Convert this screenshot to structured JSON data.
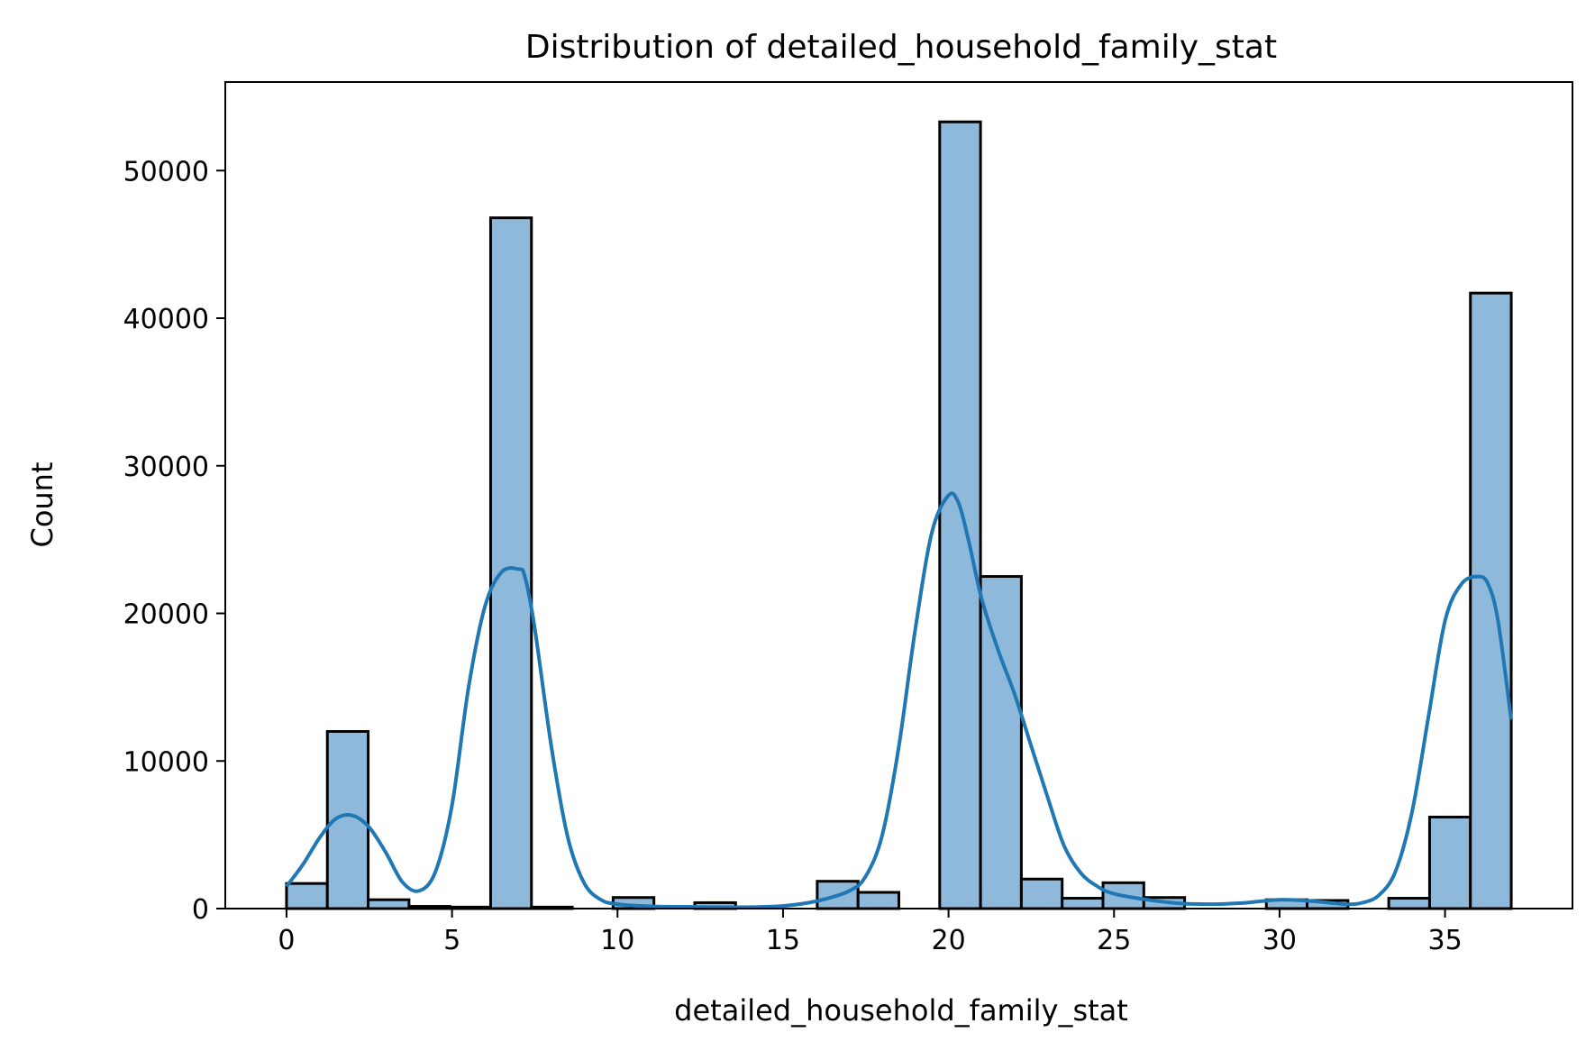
{
  "chart_data": {
    "type": "bar",
    "title": "Distribution of detailed_household_family_stat",
    "xlabel": "detailed_household_family_stat",
    "ylabel": "Count",
    "xlim": [
      -1.85,
      38.85
    ],
    "ylim": [
      0,
      56000
    ],
    "x_ticks": [
      0,
      5,
      10,
      15,
      20,
      25,
      30,
      35
    ],
    "y_ticks": [
      0,
      10000,
      20000,
      30000,
      40000,
      50000
    ],
    "bin_width": 1.2333,
    "bins": [
      {
        "left": 0.0,
        "value": 1700
      },
      {
        "left": 1.2333,
        "value": 12000
      },
      {
        "left": 2.4667,
        "value": 600
      },
      {
        "left": 3.7,
        "value": 150
      },
      {
        "left": 4.9333,
        "value": 100
      },
      {
        "left": 6.1667,
        "value": 46800
      },
      {
        "left": 7.4,
        "value": 100
      },
      {
        "left": 8.6333,
        "value": 0
      },
      {
        "left": 9.8667,
        "value": 750
      },
      {
        "left": 11.1,
        "value": 0
      },
      {
        "left": 12.3333,
        "value": 400
      },
      {
        "left": 13.5667,
        "value": 0
      },
      {
        "left": 14.8,
        "value": 0
      },
      {
        "left": 16.0333,
        "value": 1850
      },
      {
        "left": 17.2667,
        "value": 1100
      },
      {
        "left": 18.5,
        "value": 0
      },
      {
        "left": 19.7333,
        "value": 53300
      },
      {
        "left": 20.9667,
        "value": 22500
      },
      {
        "left": 22.2,
        "value": 2000
      },
      {
        "left": 23.4333,
        "value": 700
      },
      {
        "left": 24.6667,
        "value": 1750
      },
      {
        "left": 25.9,
        "value": 750
      },
      {
        "left": 27.1333,
        "value": 0
      },
      {
        "left": 28.3667,
        "value": 0
      },
      {
        "left": 29.6,
        "value": 600
      },
      {
        "left": 30.8333,
        "value": 550
      },
      {
        "left": 32.0667,
        "value": 0
      },
      {
        "left": 33.3,
        "value": 700
      },
      {
        "left": 34.5333,
        "value": 6200
      },
      {
        "left": 35.7667,
        "value": 41700
      }
    ],
    "kde": {
      "x": [
        0,
        0.5,
        1,
        1.5,
        2,
        2.5,
        3,
        3.5,
        4,
        4.5,
        5,
        5.5,
        6,
        6.5,
        7,
        7.2,
        7.5,
        8,
        8.5,
        9,
        9.5,
        10,
        11,
        12,
        13,
        14,
        15,
        16,
        17,
        17.5,
        18,
        18.5,
        19,
        19.5,
        20,
        20.3,
        20.6,
        21,
        21.5,
        22,
        22.5,
        23,
        23.5,
        24,
        24.5,
        25,
        26,
        27,
        28,
        29,
        30,
        31,
        32,
        32.5,
        33,
        33.5,
        34,
        34.5,
        35,
        35.5,
        36,
        36.3,
        36.6,
        37
      ],
      "y": [
        1500,
        3000,
        4800,
        6100,
        6300,
        5500,
        3800,
        1800,
        1200,
        2500,
        7000,
        15000,
        20500,
        22800,
        23000,
        22500,
        19000,
        11000,
        4800,
        1700,
        600,
        300,
        150,
        120,
        100,
        100,
        180,
        500,
        1200,
        2200,
        5000,
        11000,
        19000,
        25500,
        28000,
        27500,
        25000,
        21000,
        17500,
        14500,
        11000,
        7500,
        4200,
        2400,
        1500,
        1000,
        600,
        350,
        300,
        400,
        600,
        500,
        300,
        400,
        900,
        2500,
        6500,
        13000,
        19500,
        22000,
        22500,
        22000,
        19500,
        12800
      ],
      "color": "#1f77b4"
    },
    "bar_fill": "#8fb9db",
    "bar_edge": "#000000",
    "grid": false
  }
}
